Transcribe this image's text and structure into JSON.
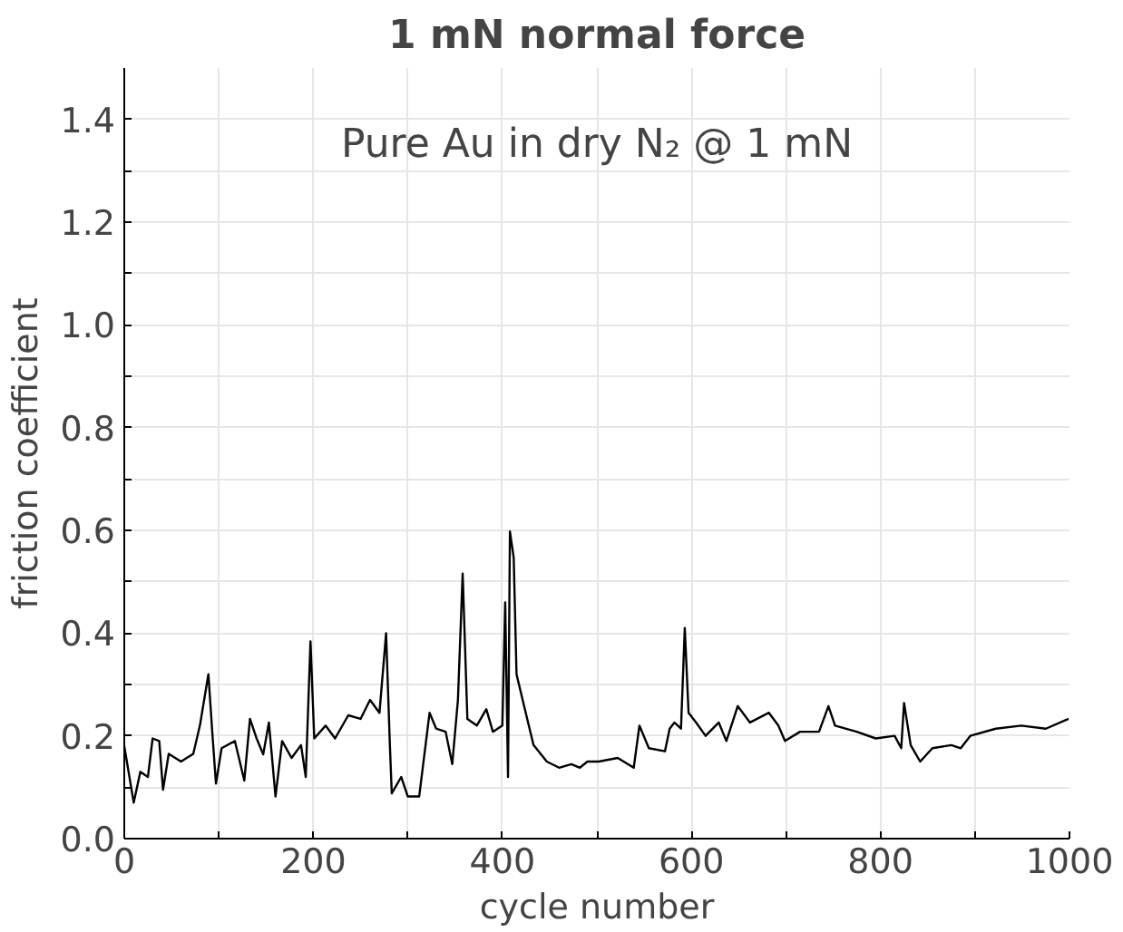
{
  "chart_data": {
    "type": "line",
    "title": "1 mN normal force",
    "xlabel": "cycle number",
    "ylabel": "friction coefficient",
    "annotations": [
      "Pure Au in dry N₂ @ 1 mN"
    ],
    "xlim": [
      0,
      1000
    ],
    "ylim": [
      0,
      1.5
    ],
    "xticks": [
      0,
      {
        "value": 100,
        "label": null
      },
      200,
      {
        "value": 300,
        "label": null
      },
      400,
      {
        "value": 500,
        "label": null
      },
      600,
      {
        "value": 700,
        "label": null
      },
      800,
      {
        "value": 900,
        "label": null
      },
      1000
    ],
    "yticks": [
      {
        "value": 0,
        "label": "0.0"
      },
      {
        "value": 0.1,
        "label": null
      },
      0.2,
      {
        "value": 0.3,
        "label": null
      },
      0.4,
      {
        "value": 0.5,
        "label": null
      },
      0.6,
      {
        "value": 0.7,
        "label": null
      },
      0.8,
      {
        "value": 0.9,
        "label": null
      },
      {
        "value": 1.0,
        "label": "1.0"
      },
      {
        "value": 1.1,
        "label": null
      },
      1.2,
      {
        "value": 1.3,
        "label": null
      },
      1.4
    ],
    "grid": true,
    "marker": "none",
    "line_style": "solid",
    "series": [
      {
        "color": "#000000",
        "x": [
          0,
          10,
          17,
          25,
          30,
          37,
          41,
          47,
          60,
          73,
          80,
          89,
          93,
          97,
          103,
          117,
          127,
          133,
          140,
          147,
          153,
          160,
          167,
          177,
          187,
          192,
          197,
          201,
          213,
          223,
          237,
          250,
          260,
          270,
          277,
          281,
          283,
          293,
          300,
          312,
          323,
          330,
          340,
          347,
          353,
          358,
          363,
          373,
          383,
          390,
          400,
          403,
          406,
          408,
          412,
          415,
          423,
          433,
          447,
          460,
          473,
          482,
          490,
          502,
          522,
          539,
          545,
          555,
          572,
          577,
          582,
          589,
          593,
          597,
          605,
          615,
          629,
          637,
          649,
          662,
          682,
          692,
          699,
          715,
          735,
          745,
          752,
          775,
          795,
          815,
          822,
          825,
          832,
          842,
          855,
          875,
          885,
          895,
          922,
          949,
          975,
          999
        ],
        "values": [
          0.18,
          0.07,
          0.13,
          0.12,
          0.195,
          0.19,
          0.095,
          0.165,
          0.15,
          0.165,
          0.22,
          0.32,
          0.21,
          0.107,
          0.176,
          0.19,
          0.113,
          0.233,
          0.195,
          0.164,
          0.226,
          0.082,
          0.19,
          0.157,
          0.182,
          0.12,
          0.384,
          0.195,
          0.22,
          0.195,
          0.24,
          0.233,
          0.27,
          0.245,
          0.4,
          0.182,
          0.088,
          0.12,
          0.082,
          0.082,
          0.245,
          0.214,
          0.208,
          0.145,
          0.27,
          0.516,
          0.233,
          0.22,
          0.252,
          0.208,
          0.22,
          0.46,
          0.12,
          0.598,
          0.547,
          0.32,
          0.258,
          0.182,
          0.15,
          0.138,
          0.145,
          0.138,
          0.15,
          0.15,
          0.157,
          0.138,
          0.22,
          0.176,
          0.17,
          0.214,
          0.226,
          0.214,
          0.41,
          0.245,
          0.226,
          0.2,
          0.226,
          0.19,
          0.258,
          0.226,
          0.245,
          0.22,
          0.19,
          0.208,
          0.208,
          0.258,
          0.22,
          0.208,
          0.195,
          0.2,
          0.176,
          0.264,
          0.182,
          0.15,
          0.176,
          0.182,
          0.176,
          0.2,
          0.214,
          0.22,
          0.214,
          0.233
        ]
      }
    ]
  }
}
